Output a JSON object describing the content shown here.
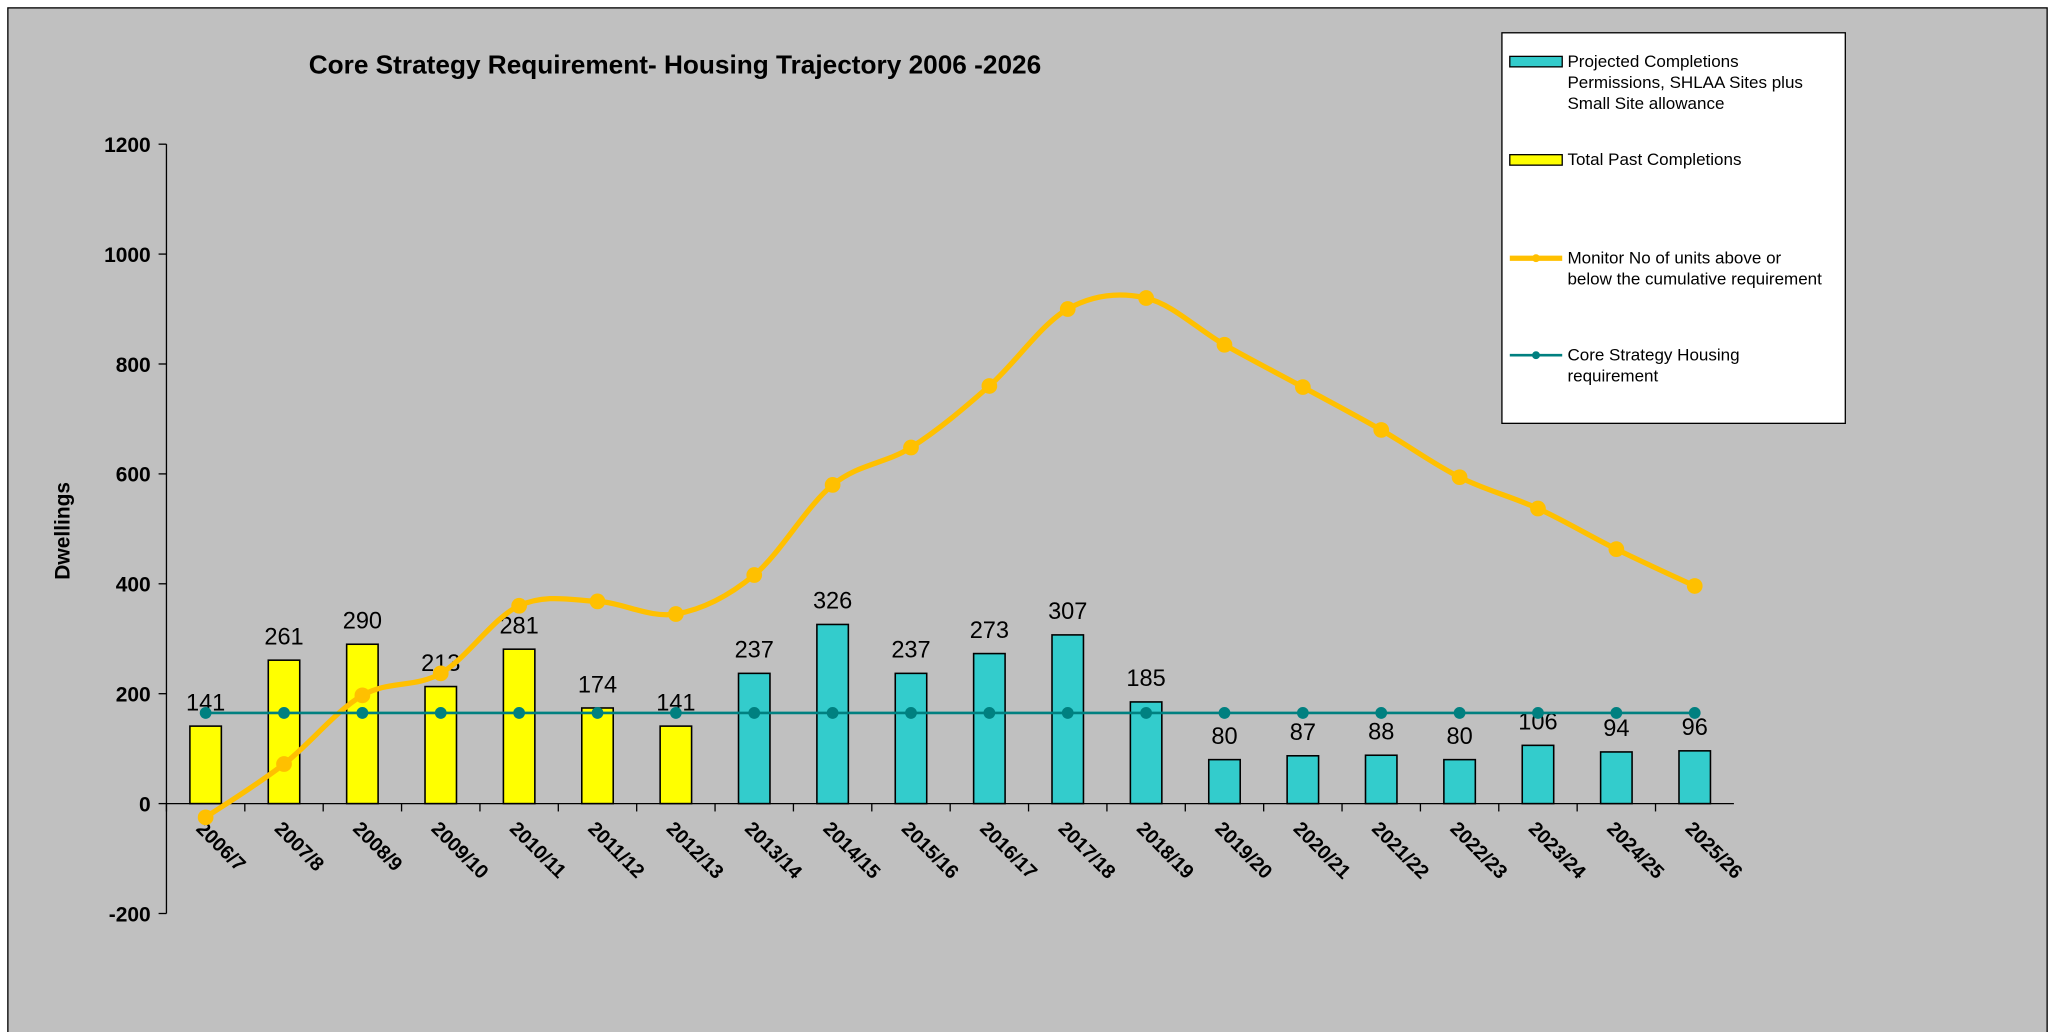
{
  "chart_data": {
    "type": "bar",
    "title": "Core Strategy Requirement-  Housing Trajectory 2006 -2026",
    "y_label": "Dwellings",
    "categories": [
      "2006/7",
      "2007/8",
      "2008/9",
      "2009/10",
      "2010/11",
      "2011/12",
      "2012/13",
      "2013/14",
      "2014/15",
      "2015/16",
      "2016/17",
      "2017/18",
      "2018/19",
      "2019/20",
      "2020/21",
      "2021/22",
      "2022/23",
      "2023/24",
      "2024/25",
      "2025/26"
    ],
    "ylim": [
      -200,
      1200
    ],
    "yticks": [
      -200,
      0,
      200,
      400,
      600,
      800,
      1000,
      1200
    ],
    "grid": false,
    "legend": "right",
    "series": [
      {
        "name": "Projected Completions Permissions, SHLAA Sites plus Small Site allowance",
        "type": "bar",
        "color": "#33cccc",
        "values": [
          null,
          null,
          null,
          null,
          null,
          null,
          null,
          237,
          326,
          237,
          273,
          307,
          185,
          80,
          87,
          88,
          80,
          106,
          94,
          96
        ]
      },
      {
        "name": "Total Past Completions",
        "type": "bar",
        "color": "#ffff00",
        "values": [
          141,
          261,
          290,
          213,
          281,
          174,
          141,
          null,
          null,
          null,
          null,
          null,
          null,
          null,
          null,
          null,
          null,
          null,
          null,
          null
        ]
      },
      {
        "name": "Monitor No of units above or below the cumulative requirement",
        "type": "line",
        "color": "#ffc000",
        "values": [
          -25,
          72,
          197,
          237,
          360,
          368,
          345,
          416,
          580,
          648,
          760,
          900,
          920,
          835,
          758,
          680,
          594,
          537,
          463,
          396
        ]
      },
      {
        "name": "Core Strategy Housing requirement",
        "type": "line",
        "color": "#008080",
        "values": [
          165,
          165,
          165,
          165,
          165,
          165,
          165,
          165,
          165,
          165,
          165,
          165,
          165,
          165,
          165,
          165,
          165,
          165,
          165,
          165
        ]
      }
    ]
  }
}
